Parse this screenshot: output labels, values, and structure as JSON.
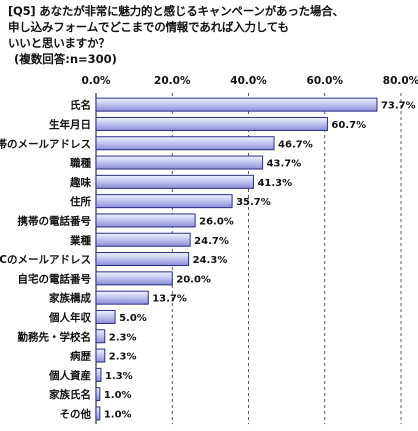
{
  "question": {
    "line1": "[Q5] あなたが非常に魅力的と感じるキャンペーンがあった場合、",
    "line2": "申し込みフォームでどこまでの情報であれば入力しても",
    "line3": "いいと思いますか？",
    "note": "(複数回答:n=300)"
  },
  "colors": {
    "bar_fill_top": "#f2f4ff",
    "bar_fill_bottom": "#8c8ed8",
    "bar_stroke": "#2a2d80",
    "grid": "#333333"
  },
  "chart_data": {
    "type": "bar",
    "orientation": "horizontal",
    "categories": [
      "氏名",
      "生年月日",
      "携帯のメールアドレス",
      "職種",
      "趣味",
      "住所",
      "携帯の電話番号",
      "業種",
      "PCのメールアドレス",
      "自宅の電話番号",
      "家族構成",
      "個人年収",
      "勤務先・学校名",
      "病歴",
      "個人資産",
      "家族氏名",
      "その他"
    ],
    "values": [
      73.7,
      60.7,
      46.7,
      43.7,
      41.3,
      35.7,
      26.0,
      24.7,
      24.3,
      20.0,
      13.7,
      5.0,
      2.3,
      2.3,
      1.3,
      1.0,
      1.0
    ],
    "value_labels": [
      "73.7%",
      "60.7%",
      "46.7%",
      "43.7%",
      "41.3%",
      "35.7%",
      "26.0%",
      "24.7%",
      "24.3%",
      "20.0%",
      "13.7%",
      "5.0%",
      "2.3%",
      "2.3%",
      "1.3%",
      "1.0%",
      "1.0%"
    ],
    "xlim": [
      0,
      80
    ],
    "x_ticks": [
      "0.0%",
      "20.0%",
      "40.0%",
      "60.0%",
      "80.0%"
    ],
    "grid": "vertical dashed lines"
  }
}
